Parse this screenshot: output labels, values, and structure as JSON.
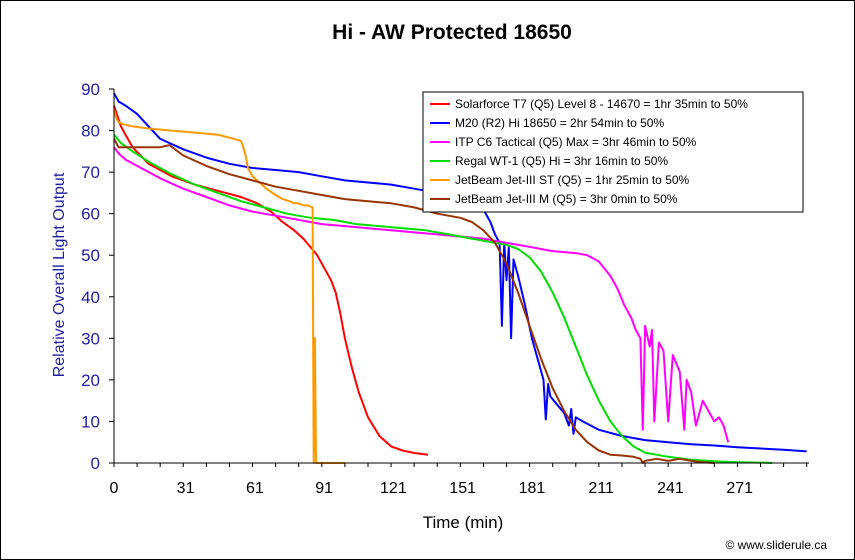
{
  "chart_data": {
    "type": "line",
    "title": "Hi - AW Protected 18650",
    "xlabel": "Time (min)",
    "ylabel": "Relative Overall Light Output",
    "xlim": [
      0,
      301
    ],
    "ylim": [
      0,
      90
    ],
    "xticks": [
      0,
      31,
      61,
      91,
      121,
      151,
      181,
      211,
      241,
      271
    ],
    "yticks": [
      0,
      10,
      20,
      30,
      40,
      50,
      60,
      70,
      80,
      90
    ],
    "grid": false,
    "legend_position": "top-right",
    "credit": "© www.sliderule.ca",
    "series": [
      {
        "name": "Solarforce T7 (Q5) Level 8 - 14670 = 1hr 35min to 50%",
        "color": "#ff0000",
        "x": [
          0,
          3,
          8,
          15,
          25,
          35,
          45,
          55,
          62,
          68,
          73,
          78,
          82,
          85,
          88,
          91,
          94,
          96,
          98,
          100,
          103,
          106,
          110,
          115,
          120,
          125,
          130,
          136
        ],
        "y": [
          86,
          81,
          76,
          72,
          69,
          67,
          65.5,
          64,
          62.5,
          60.5,
          58,
          56,
          54,
          52,
          50,
          47,
          44,
          41,
          36,
          30,
          23,
          17,
          11,
          6.5,
          4,
          3,
          2.4,
          2
        ]
      },
      {
        "name": "M20 (R2) Hi 18650 = 2hr 54min to 50%",
        "color": "#0000ff",
        "x": [
          0,
          2,
          5,
          10,
          15,
          20,
          30,
          40,
          50,
          60,
          70,
          80,
          90,
          100,
          110,
          120,
          130,
          140,
          150,
          155,
          160,
          163,
          165,
          167,
          168,
          169,
          170,
          171,
          172,
          173,
          175,
          178,
          181,
          184,
          186,
          187,
          188,
          189,
          192,
          195,
          197,
          198,
          199,
          200,
          203,
          210,
          220,
          230,
          240,
          250,
          260,
          270,
          280,
          290,
          300
        ],
        "y": [
          89,
          87,
          86,
          84,
          81,
          78,
          75.5,
          73.5,
          72,
          71,
          70.5,
          70,
          69,
          68,
          67.5,
          67,
          66,
          65,
          64.5,
          63.5,
          61,
          58,
          55,
          53,
          33,
          53,
          44,
          52,
          30,
          49,
          45,
          38,
          30,
          24,
          20,
          10.5,
          19,
          16,
          14,
          12,
          9,
          13,
          7,
          11,
          10,
          8,
          6.5,
          5.5,
          5,
          4.5,
          4.2,
          3.8,
          3.5,
          3.2,
          2.8
        ]
      },
      {
        "name": "ITP C6 Tactical (Q5) Max = 3hr 46min to 50%",
        "color": "#ff00ff",
        "x": [
          0,
          2,
          5,
          10,
          20,
          30,
          40,
          50,
          60,
          70,
          80,
          90,
          100,
          110,
          120,
          130,
          140,
          150,
          160,
          170,
          180,
          190,
          200,
          205,
          210,
          215,
          218,
          221,
          224,
          226,
          228,
          229,
          230,
          232,
          233,
          234,
          236,
          238,
          240,
          242,
          245,
          247,
          248,
          250,
          252,
          255,
          258,
          260,
          262,
          264,
          266
        ],
        "y": [
          76,
          74.5,
          73,
          71.5,
          68.5,
          66,
          64,
          62,
          60.5,
          59.5,
          58.5,
          57.5,
          57,
          56.5,
          56,
          55.5,
          55,
          54.5,
          54,
          53,
          52,
          51,
          50.5,
          50,
          48.5,
          45,
          42,
          38,
          35,
          32,
          30,
          8,
          33,
          28,
          32,
          10,
          29,
          27,
          10,
          26,
          22,
          8,
          20,
          17,
          9,
          15,
          12,
          10,
          11,
          9,
          5
        ]
      },
      {
        "name": "Regal WT-1 (Q5) Hi = 3hr 16min to 50%",
        "color": "#00dd00",
        "x": [
          0,
          3,
          8,
          15,
          25,
          35,
          45,
          55,
          65,
          75,
          85,
          95,
          105,
          115,
          125,
          135,
          145,
          155,
          165,
          170,
          175,
          180,
          185,
          190,
          195,
          200,
          205,
          210,
          215,
          220,
          225,
          230,
          240,
          250,
          260,
          270,
          280,
          285
        ],
        "y": [
          79,
          77,
          75,
          72.5,
          69.5,
          67,
          65,
          63,
          61.5,
          60,
          59,
          58.5,
          57.5,
          57,
          56.5,
          56,
          55,
          54,
          53,
          52.5,
          51.5,
          49.5,
          46,
          41,
          35,
          28,
          21,
          15,
          10,
          6.5,
          4,
          2.5,
          1.5,
          0.8,
          0.4,
          0.2,
          0.1,
          0
        ]
      },
      {
        "name": "JetBeam Jet-III ST (Q5) =  1hr 25min to 50%",
        "color": "#ff9900",
        "x": [
          0,
          1,
          2,
          4,
          8,
          15,
          25,
          35,
          45,
          52,
          55,
          56,
          57,
          58,
          60,
          63,
          66,
          70,
          73,
          76,
          78,
          80,
          82,
          84,
          86,
          86.5,
          87,
          87.5,
          90,
          95,
          100
        ],
        "y": [
          85,
          83,
          82,
          81.5,
          81,
          80.5,
          80,
          79.5,
          79,
          78,
          77.5,
          76,
          74,
          71,
          69,
          67.5,
          66,
          64.5,
          63.5,
          63,
          62.5,
          62.5,
          62,
          62,
          61.5,
          0,
          30,
          0,
          0,
          0,
          0
        ]
      },
      {
        "name": "JetBeam Jet-III M (Q5) = 3hr 0min to 50%",
        "color": "#993300",
        "x": [
          0,
          1,
          2,
          4,
          6,
          10,
          15,
          20,
          24,
          30,
          40,
          50,
          60,
          70,
          80,
          90,
          100,
          110,
          120,
          130,
          140,
          150,
          155,
          160,
          165,
          170,
          175,
          180,
          185,
          190,
          195,
          200,
          205,
          210,
          215,
          220,
          225,
          228,
          229,
          230,
          235,
          240,
          245,
          250,
          255,
          260
        ],
        "y": [
          78,
          77,
          76,
          76,
          76,
          76,
          76,
          76,
          76.5,
          74,
          71.5,
          69.5,
          68,
          66.5,
          65.5,
          64.5,
          63.5,
          63,
          62.5,
          61.5,
          60,
          59,
          58,
          56,
          53,
          48,
          41,
          33,
          25,
          18,
          12.5,
          8,
          5,
          3,
          2,
          1.8,
          1.5,
          1,
          0,
          0.5,
          1,
          0.5,
          1,
          0.5,
          0.2,
          0
        ]
      }
    ]
  }
}
